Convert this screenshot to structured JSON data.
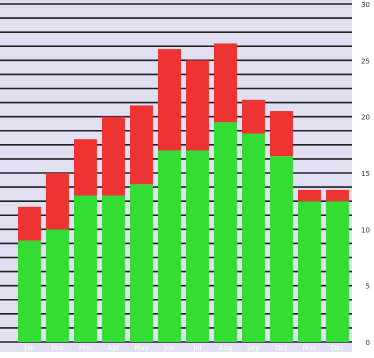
{
  "chart_data": {
    "type": "bar",
    "stacked": true,
    "title": "",
    "xlabel": "",
    "ylabel": "",
    "categories": [
      "Jan",
      "Feb",
      "Mar",
      "Apr",
      "May",
      "Jun",
      "Jul",
      "Aug",
      "Sep",
      "Oct",
      "Nov",
      "Dec"
    ],
    "series": [
      {
        "color": "#33dd33",
        "values": [
          9,
          10,
          13,
          13,
          14,
          17,
          17,
          19.5,
          18.5,
          16.5,
          12.5,
          12.5
        ]
      },
      {
        "color": "#ee3333",
        "values": [
          3,
          5,
          5,
          7,
          7,
          9,
          8,
          7,
          3,
          4,
          1,
          1
        ]
      }
    ],
    "ylim": [
      0,
      30
    ],
    "yticks": [
      0,
      5,
      10,
      15,
      20,
      25,
      30
    ],
    "ytick_labels": [
      "0",
      "5",
      "10",
      "15",
      "20",
      "25",
      "30"
    ],
    "grid": true,
    "grid_color": "#222222",
    "background": "#e0e0f2",
    "y_axis_side": "right",
    "x_tick_labels_position": "inside-bars-bottom"
  }
}
